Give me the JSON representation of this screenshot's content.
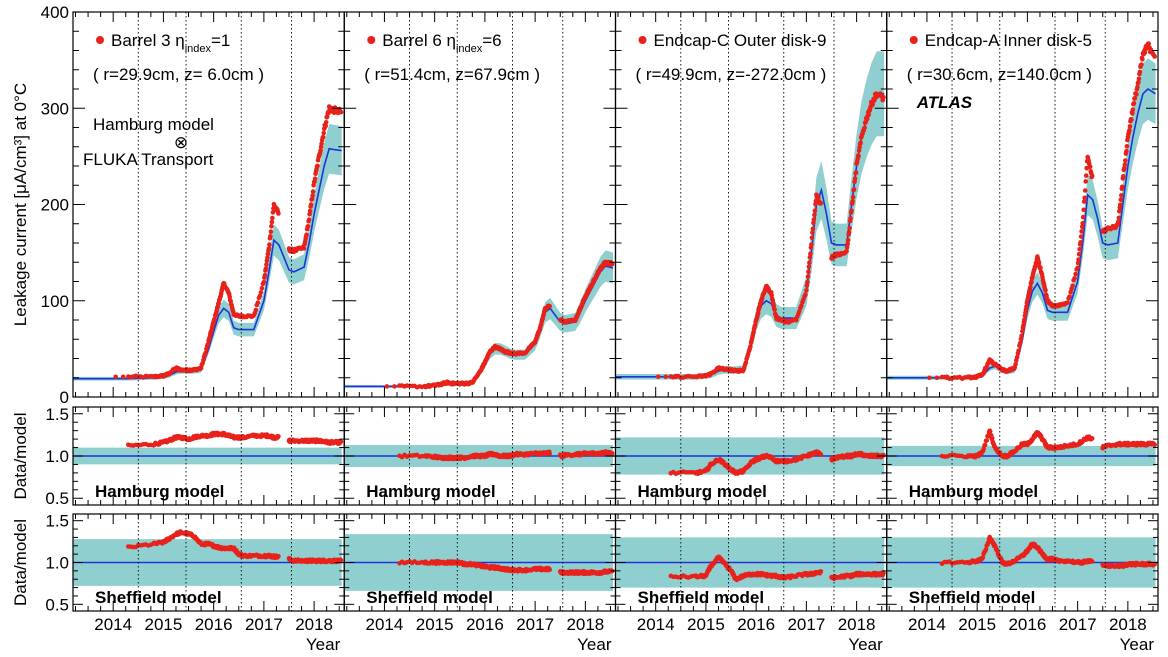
{
  "chart_data": {
    "type": "scatter",
    "x_axis": {
      "label": "Year",
      "range": [
        2013.2,
        2018.6
      ],
      "ticks": [
        "2014",
        "2015",
        "2016",
        "2017",
        "2018"
      ],
      "tick_values": [
        2014,
        2015,
        2016,
        2017,
        2018
      ]
    },
    "markers": [
      2014.5,
      2015.45,
      2016.55,
      2017.55
    ],
    "main_plot": {
      "ylabel": "Leakage current [μA/cm³] at 0°C",
      "ylim": [
        0,
        400
      ],
      "yticks": [
        "0",
        "100",
        "200",
        "300",
        "400"
      ],
      "ytick_values": [
        0,
        100,
        200,
        300,
        400
      ]
    },
    "ratio_plots": [
      {
        "ylabel": "Data/model",
        "ylim": [
          0.42,
          1.58
        ],
        "yticks": [
          "0.5",
          "1.0",
          "1.5"
        ],
        "ytick_values": [
          0.5,
          1.0,
          1.5
        ],
        "model_label": "Hamburg model"
      },
      {
        "ylabel": "Data/model",
        "ylim": [
          0.42,
          1.58
        ],
        "yticks": [
          "0.5",
          "1.0",
          "1.5"
        ],
        "ytick_values": [
          0.5,
          1.0,
          1.5
        ],
        "model_label": "Sheffield model"
      }
    ],
    "annotations": {
      "hamburg_model": "Hamburg model",
      "otimes": "⊗",
      "fluka": "FLUKA Transport",
      "atlas": "ATLAS"
    },
    "colors": {
      "data": "#e8221b",
      "model_line": "#1a35d8",
      "band": "#8fcfcf"
    },
    "time_axis": [
      2013.2,
      2013.8,
      2014.3,
      2014.8,
      2015.0,
      2015.1,
      2015.25,
      2015.35,
      2015.5,
      2015.6,
      2015.75,
      2015.9,
      2016.0,
      2016.1,
      2016.2,
      2016.3,
      2016.4,
      2016.5,
      2016.6,
      2016.8,
      2017.0,
      2017.1,
      2017.2,
      2017.3,
      2017.4,
      2017.5,
      2017.6,
      2017.8,
      2017.9,
      2018.0,
      2018.1,
      2018.2,
      2018.3,
      2018.4,
      2018.55
    ],
    "modules": [
      {
        "name": "Barrel 3  η",
        "name_sub": "index",
        "name_tail": "=1",
        "coords": "( r=29.9cm, z= 6.0cm )",
        "model": [
          19,
          19,
          19,
          20,
          21,
          22,
          26,
          27,
          27,
          27,
          28,
          50,
          68,
          85,
          92,
          88,
          72,
          70,
          70,
          70,
          100,
          130,
          163,
          158,
          145,
          132,
          130,
          135,
          160,
          190,
          215,
          240,
          258,
          257,
          256
        ],
        "data": [
          null,
          null,
          21,
          21,
          22,
          24,
          30,
          28,
          28,
          28,
          30,
          58,
          78,
          98,
          118,
          108,
          86,
          84,
          84,
          84,
          120,
          155,
          200,
          190,
          null,
          153,
          152,
          155,
          185,
          222,
          250,
          278,
          300,
          298,
          296
        ],
        "band_frac": 0.1,
        "ratio_h": [
          null,
          null,
          1.12,
          1.14,
          1.16,
          1.18,
          1.22,
          1.22,
          1.2,
          1.22,
          1.24,
          1.24,
          1.26,
          1.26,
          1.26,
          1.24,
          1.22,
          1.22,
          1.22,
          1.24,
          1.24,
          1.24,
          1.22,
          1.22,
          null,
          1.18,
          1.18,
          1.18,
          1.18,
          1.18,
          1.18,
          1.17,
          1.16,
          1.16,
          1.16
        ],
        "band_h": 0.1,
        "ratio_s": [
          null,
          null,
          1.18,
          1.22,
          1.24,
          1.28,
          1.34,
          1.36,
          1.34,
          1.32,
          1.22,
          1.22,
          1.2,
          1.18,
          1.17,
          1.17,
          1.17,
          1.1,
          1.08,
          1.08,
          1.08,
          1.08,
          1.07,
          1.07,
          null,
          1.04,
          1.02,
          1.02,
          1.02,
          1.02,
          1.02,
          1.02,
          1.02,
          1.02,
          1.02
        ],
        "band_s": 0.28
      },
      {
        "name": "Barrel 6  η",
        "name_sub": "index",
        "name_tail": "=6",
        "coords": "( r=51.4cm, z=67.9cm )",
        "model": [
          11,
          11,
          11,
          11,
          12,
          13,
          14,
          14,
          14,
          14,
          14,
          25,
          35,
          45,
          50,
          50,
          48,
          45,
          44,
          44,
          55,
          70,
          88,
          92,
          85,
          78,
          76,
          78,
          88,
          100,
          110,
          120,
          130,
          136,
          134
        ],
        "data": [
          null,
          null,
          11,
          11,
          12,
          13,
          15,
          14,
          14,
          14,
          15,
          26,
          36,
          47,
          52,
          50,
          47,
          46,
          45,
          46,
          57,
          72,
          92,
          95,
          null,
          80,
          78,
          80,
          92,
          105,
          114,
          124,
          134,
          140,
          138
        ],
        "band_frac": 0.12,
        "ratio_h": [
          null,
          null,
          1.0,
          1.0,
          0.99,
          0.98,
          0.98,
          0.98,
          0.98,
          0.98,
          1.0,
          1.0,
          1.0,
          1.02,
          1.02,
          1.0,
          1.0,
          1.0,
          1.02,
          1.02,
          1.03,
          1.03,
          1.03,
          1.04,
          null,
          1.0,
          1.01,
          1.02,
          1.02,
          1.03,
          1.03,
          1.03,
          1.03,
          1.04,
          1.04
        ],
        "band_h": 0.13,
        "ratio_s": [
          null,
          null,
          1.0,
          1.0,
          1.0,
          1.0,
          1.0,
          1.0,
          1.0,
          0.98,
          0.98,
          0.96,
          0.95,
          0.94,
          0.94,
          0.93,
          0.92,
          0.91,
          0.91,
          0.91,
          0.92,
          0.92,
          0.92,
          0.92,
          null,
          0.88,
          0.88,
          0.88,
          0.88,
          0.88,
          0.88,
          0.88,
          0.88,
          0.89,
          0.89
        ],
        "band_s": 0.34
      },
      {
        "name": "Endcap-C Outer disk-9",
        "name_sub": "",
        "name_tail": "",
        "coords": "( r=49.9cm, z=-272.0cm )",
        "model": [
          21,
          21,
          21,
          21,
          22,
          23,
          27,
          28,
          28,
          28,
          29,
          55,
          80,
          95,
          100,
          97,
          85,
          82,
          82,
          82,
          110,
          150,
          200,
          215,
          190,
          160,
          158,
          158,
          200,
          240,
          270,
          290,
          305,
          315,
          315
        ],
        "data": [
          null,
          null,
          21,
          21,
          22,
          24,
          30,
          29,
          28,
          27,
          28,
          56,
          80,
          100,
          115,
          108,
          82,
          80,
          78,
          80,
          110,
          160,
          210,
          200,
          null,
          145,
          148,
          150,
          195,
          240,
          270,
          290,
          305,
          315,
          310
        ],
        "band_frac": 0.14,
        "ratio_h": [
          null,
          null,
          0.8,
          0.8,
          0.82,
          0.9,
          0.96,
          0.92,
          0.84,
          0.8,
          0.82,
          0.92,
          0.96,
          0.98,
          1.0,
          0.98,
          0.94,
          0.94,
          0.94,
          0.96,
          1.0,
          1.02,
          1.04,
          1.02,
          null,
          0.96,
          0.98,
          1.0,
          1.0,
          1.02,
          1.02,
          1.0,
          1.0,
          1.0,
          1.0
        ],
        "band_h": 0.22,
        "ratio_s": [
          null,
          null,
          0.83,
          0.83,
          0.84,
          0.96,
          1.06,
          1.0,
          0.9,
          0.8,
          0.84,
          0.86,
          0.86,
          0.86,
          0.85,
          0.84,
          0.84,
          0.82,
          0.82,
          0.84,
          0.86,
          0.86,
          0.88,
          0.88,
          null,
          0.82,
          0.82,
          0.84,
          0.84,
          0.86,
          0.86,
          0.86,
          0.86,
          0.86,
          0.86
        ],
        "band_s": 0.3
      },
      {
        "name": "Endcap-A Inner disk-5",
        "name_sub": "",
        "name_tail": "",
        "coords": "( r=30.6cm, z=140.0cm )",
        "model": [
          20,
          20,
          20,
          20,
          21,
          22,
          30,
          32,
          28,
          26,
          28,
          60,
          90,
          110,
          118,
          108,
          90,
          88,
          88,
          88,
          120,
          160,
          210,
          205,
          185,
          160,
          158,
          160,
          200,
          240,
          270,
          295,
          315,
          320,
          315
        ],
        "data": [
          null,
          null,
          20,
          20,
          21,
          23,
          38,
          34,
          28,
          27,
          30,
          68,
          100,
          125,
          145,
          125,
          100,
          95,
          95,
          98,
          135,
          180,
          250,
          225,
          null,
          172,
          175,
          178,
          225,
          270,
          300,
          325,
          355,
          365,
          355
        ],
        "band_frac": 0.1,
        "ratio_h": [
          null,
          null,
          1.0,
          1.0,
          1.0,
          1.04,
          1.3,
          1.1,
          1.0,
          1.0,
          1.06,
          1.14,
          1.14,
          1.2,
          1.28,
          1.2,
          1.1,
          1.1,
          1.1,
          1.12,
          1.14,
          1.18,
          1.22,
          1.2,
          null,
          1.1,
          1.12,
          1.14,
          1.14,
          1.14,
          1.14,
          1.14,
          1.14,
          1.14,
          1.14
        ],
        "band_h": 0.12,
        "ratio_s": [
          null,
          null,
          1.0,
          1.0,
          1.02,
          1.04,
          1.3,
          1.2,
          1.0,
          0.98,
          1.02,
          1.08,
          1.14,
          1.22,
          1.18,
          1.1,
          1.04,
          1.04,
          1.02,
          1.02,
          1.0,
          1.0,
          1.02,
          1.02,
          null,
          0.96,
          0.96,
          0.96,
          0.96,
          0.98,
          0.98,
          0.98,
          0.98,
          0.98,
          0.98
        ],
        "band_s": 0.3
      }
    ]
  }
}
